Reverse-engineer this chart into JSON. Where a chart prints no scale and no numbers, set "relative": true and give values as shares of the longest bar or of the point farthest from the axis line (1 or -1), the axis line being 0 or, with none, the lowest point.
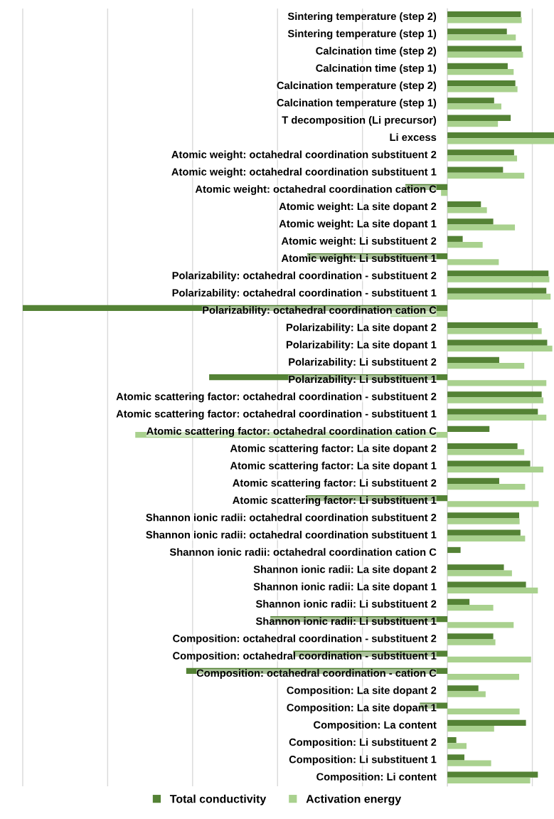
{
  "chart_data": {
    "type": "bar",
    "orientation": "horizontal",
    "relative": true,
    "grid": "x",
    "legend": "bottom",
    "categories": [
      "Sintering temperature (step 2)",
      "Sintering temperature (step 1)",
      "Calcination time (step 2)",
      "Calcination time (step 1)",
      "Calcination temperature (step 2)",
      "Calcination temperature (step 1)",
      "T decomposition (Li precursor)",
      "Li excess",
      "Atomic weight: octahedral coordination substituent 2",
      "Atomic weight: octahedral coordination substituent 1",
      "Atomic weight: octahedral coordination cation C",
      "Atomic weight: La site dopant 2",
      "Atomic weight: La site dopant 1",
      "Atomic weight: Li substituent 2",
      "Atomic weight: Li substituent 1",
      "Polarizability: octahedral coordination - substituent 2",
      "Polarizability: octahedral coordination - substituent 1",
      "Polarizability: octahedral coordination cation C",
      "Polarizability: La site dopant 2",
      "Polarizability: La site dopant 1",
      "Polarizability: Li substituent 2",
      "Polarizability: Li substituent 1",
      "Atomic scattering factor: octahedral coordination - substituent 2",
      "Atomic scattering factor: octahedral coordination - substituent 1",
      "Atomic scattering factor: octahedral coordination cation C",
      "Atomic scattering factor: La site dopant 2",
      "Atomic scattering factor: La site dopant 1",
      "Atomic scattering factor: Li substituent 2",
      "Atomic scattering factor: Li substituent 1",
      "Shannon ionic radii: octahedral coordination substituent 2",
      "Shannon ionic radii: octahedral coordination substituent 1",
      "Shannon ionic radii: octahedral coordination cation C",
      "Shannon ionic radii: La site dopant 2",
      "Shannon ionic radii: La site dopant 1",
      "Shannon ionic radii: Li substituent 2",
      "Shannon ionic radii: Li substituent 1",
      "Composition: octahedral coordination - substituent 2",
      "Composition: octahedral coordination - substituent 1",
      "Composition: octahedral coordination - cation C",
      "Composition: La site dopant 2",
      "Composition: La site dopant 1",
      "Composition: La content",
      "Composition: Li substituent 2",
      "Composition: Li substituent 1",
      "Composition: Li content"
    ],
    "series": [
      {
        "name": "Total conductivity",
        "color": "#548235",
        "values": [
          0.173,
          0.14,
          0.175,
          0.142,
          0.16,
          0.11,
          0.149,
          0.251,
          0.157,
          0.131,
          -0.099,
          0.079,
          0.108,
          0.036,
          -0.33,
          0.238,
          0.233,
          -1,
          0.213,
          0.235,
          0.122,
          -0.561,
          0.222,
          0.213,
          0.099,
          0.165,
          0.195,
          0.122,
          -0.333,
          0.169,
          0.172,
          0.031,
          0.133,
          0.185,
          0.052,
          -0.417,
          0.108,
          -0.363,
          -0.615,
          0.073,
          -0.065,
          0.185,
          0.021,
          0.04,
          0.213
        ]
      },
      {
        "name": "Activation energy",
        "color": "#a9d18e",
        "values": [
          0.175,
          0.161,
          0.178,
          0.156,
          0.165,
          0.127,
          0.119,
          0.251,
          0.164,
          0.181,
          -0.015,
          0.093,
          0.159,
          0.083,
          0.121,
          0.24,
          0.243,
          -0.134,
          0.222,
          0.247,
          0.181,
          0.233,
          0.226,
          0.233,
          -0.735,
          0.181,
          0.226,
          0.183,
          0.215,
          0.17,
          0.183,
          0,
          0.152,
          0.213,
          0.108,
          0.156,
          0.113,
          0.197,
          0.169,
          0.09,
          0.17,
          0.11,
          0.045,
          0.103,
          0.195
        ]
      }
    ]
  }
}
